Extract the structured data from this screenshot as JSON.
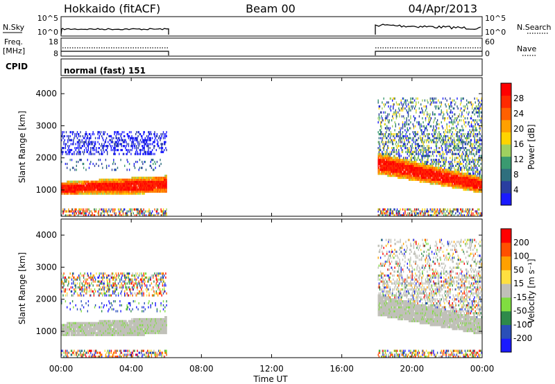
{
  "header": {
    "station": "Hokkaido (fitACF)",
    "beam": "Beam 00",
    "date": "04/Apr/2013"
  },
  "top_panels": {
    "nsky_label": "N.Sky",
    "nsearch_label": "N.Search",
    "nsky_ticks": [
      "10^5",
      "10^0"
    ],
    "freq_label": "Freq.",
    "freq_unit": "[MHz]",
    "freq_ticks": [
      "18",
      "8"
    ],
    "nave_label": "Nave",
    "nave_ticks": [
      "60",
      "0"
    ],
    "cpid_label": "CPID",
    "cpid_value": "normal (fast) 151"
  },
  "chart_data": [
    {
      "type": "heatmap",
      "name": "power",
      "ylabel": "Slant Range [km]",
      "ylim": [
        180,
        4500
      ],
      "yticks": [
        "4000",
        "3000",
        "2000",
        "1000"
      ],
      "xlabel": "Time UT",
      "xlim": [
        "00:00",
        "24:00"
      ],
      "xticks": [
        "00:00",
        "04:00",
        "08:00",
        "12:00",
        "16:00",
        "20:00",
        "00:00"
      ],
      "data_intervals_ut": [
        [
          0,
          6.0
        ],
        [
          18.0,
          24.0
        ]
      ],
      "colorbar": {
        "label": "Power [dB]",
        "ticks": [
          "28",
          "24",
          "20",
          "16",
          "12",
          "8",
          "4"
        ],
        "range": [
          0,
          30
        ],
        "colors": [
          "#1a1aff",
          "#2a3ea0",
          "#2f6f7e",
          "#3a9a70",
          "#9fd060",
          "#ffd400",
          "#ffa000",
          "#ff6000",
          "#ff2a00",
          "#ff0000"
        ]
      },
      "features": [
        {
          "label": "strong band",
          "t": [
            0,
            6.0
          ],
          "range_km": [
            800,
            1450
          ],
          "power_db": 28
        },
        {
          "label": "upper echoes",
          "t": [
            0,
            6.0
          ],
          "range_km": [
            2200,
            2800
          ],
          "power_db": 4
        },
        {
          "label": "descending band",
          "t": [
            18.0,
            24.0
          ],
          "range_km_start": [
            1500,
            2200
          ],
          "range_km_end": [
            900,
            1400
          ],
          "power_db": 24
        },
        {
          "label": "upper patchy echoes",
          "t": [
            18.0,
            24.0
          ],
          "range_km": [
            2000,
            4000
          ],
          "power_db": 8
        }
      ]
    },
    {
      "type": "heatmap",
      "name": "velocity",
      "ylabel": "Slant Range [km]",
      "ylim": [
        180,
        4500
      ],
      "yticks": [
        "4000",
        "3000",
        "2000",
        "1000"
      ],
      "xlabel": "Time UT",
      "xlim": [
        "00:00",
        "24:00"
      ],
      "xticks": [
        "00:00",
        "04:00",
        "08:00",
        "12:00",
        "16:00",
        "20:00",
        "00:00"
      ],
      "colorbar": {
        "label": "Velocity [m s⁻¹]",
        "ticks": [
          "200",
          "100",
          "50",
          "15",
          "-15",
          "-50",
          "-100",
          "-200"
        ],
        "colors": [
          "#1a1aff",
          "#2a4fb8",
          "#2e8a4a",
          "#80dd40",
          "#c0c0b8",
          "#ffe040",
          "#ffa000",
          "#ff5000",
          "#ff0000"
        ]
      },
      "features": [
        {
          "label": "ground scatter band",
          "t": [
            0,
            6.0
          ],
          "range_km": [
            800,
            1500
          ],
          "velocity": 0
        },
        {
          "label": "ground scatter band",
          "t": [
            18.0,
            24.0
          ],
          "range_km_start": [
            1500,
            2200
          ],
          "range_km_end": [
            900,
            1400
          ],
          "velocity": 0
        }
      ]
    }
  ]
}
